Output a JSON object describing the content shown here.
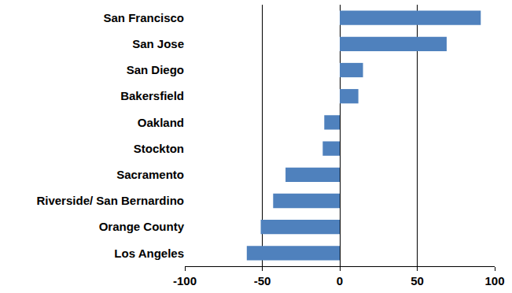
{
  "chart_data": {
    "type": "bar",
    "orientation": "horizontal",
    "categories": [
      "San Francisco",
      "San Jose",
      "San Diego",
      "Bakersfield",
      "Oakland",
      "Stockton",
      "Sacramento",
      "Riverside/ San Bernardino",
      "Orange County",
      "Los Angeles"
    ],
    "values": [
      91,
      69,
      15,
      12,
      -10,
      -11,
      -35,
      -43,
      -51,
      -60
    ],
    "color": "#4f81bd",
    "xlim": [
      -100,
      100
    ],
    "xticks": [
      -100,
      -50,
      0,
      50,
      100
    ],
    "grid": true
  }
}
